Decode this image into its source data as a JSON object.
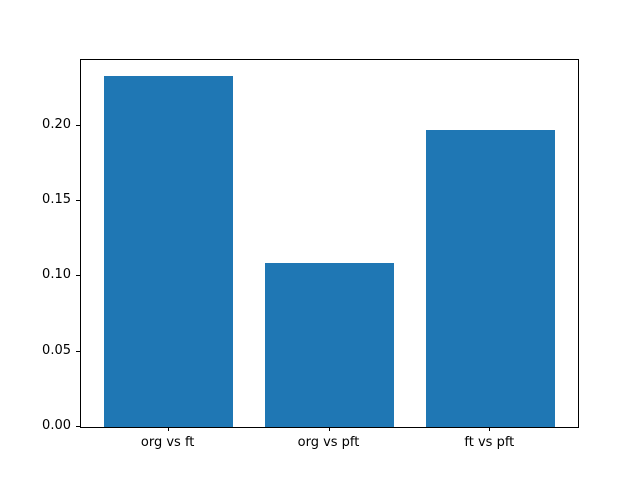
{
  "chart_data": {
    "type": "bar",
    "categories": [
      "org vs ft",
      "org vs pft",
      "ft vs pft"
    ],
    "values": [
      0.233,
      0.109,
      0.197
    ],
    "title": "",
    "xlabel": "",
    "ylabel": "",
    "ylim": [
      0,
      0.2435
    ],
    "xlim": [
      -0.545,
      2.545
    ],
    "yticks": [
      0.0,
      0.05,
      0.1,
      0.15,
      0.2
    ],
    "ytick_labels": [
      "0.00",
      "0.05",
      "0.10",
      "0.15",
      "0.20"
    ],
    "bar_width": 0.8,
    "bar_color": "#1f77b4",
    "background_color": "#ffffff",
    "spine_color": "#000000",
    "grid": false,
    "legend_position": "none"
  }
}
